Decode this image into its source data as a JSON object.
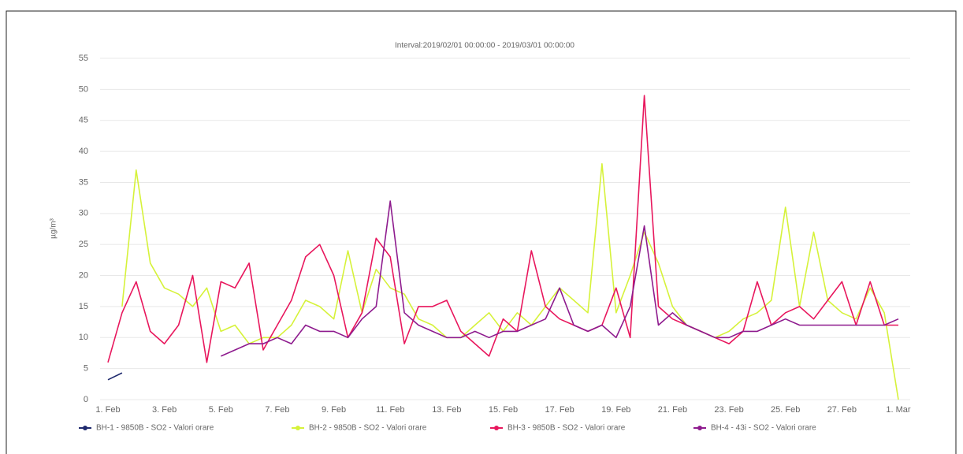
{
  "chart_data": {
    "type": "line",
    "title": "Interval:2019/02/01 00:00:00 - 2019/03/01 00:00:00",
    "y_label": "µg/m³",
    "categories": [
      "1. Feb",
      null,
      null,
      null,
      "3. Feb",
      null,
      null,
      null,
      "5. Feb",
      null,
      null,
      null,
      "7. Feb",
      null,
      null,
      null,
      "9. Feb",
      null,
      null,
      null,
      "11. Feb",
      null,
      null,
      null,
      "13. Feb",
      null,
      null,
      null,
      "15. Feb",
      null,
      null,
      null,
      "17. Feb",
      null,
      null,
      null,
      "19. Feb",
      null,
      null,
      null,
      "21. Feb",
      null,
      null,
      null,
      "23. Feb",
      null,
      null,
      null,
      "25. Feb",
      null,
      null,
      null,
      "27. Feb",
      null,
      null,
      null,
      "1. Mar"
    ],
    "series": [
      {
        "name": "BH-1 - 9850B - SO2 - Valori orare",
        "color": "#1f2a6e",
        "values": [
          3.2,
          4.3,
          null,
          null,
          null,
          null,
          null,
          null,
          null,
          null,
          null,
          null,
          null,
          null,
          null,
          null,
          null,
          null,
          null,
          null,
          null,
          null,
          null,
          null,
          null,
          null,
          null,
          null,
          null,
          null,
          null,
          null,
          null,
          null,
          null,
          null,
          null,
          null,
          null,
          null,
          null,
          null,
          null,
          null,
          null,
          null,
          null,
          null,
          null,
          null,
          null,
          null,
          null,
          null,
          null,
          null,
          null
        ]
      },
      {
        "name": "BH-2 - 9850B - SO2 - Valori orare",
        "color": "#d6f23a",
        "values": [
          null,
          15,
          37,
          22,
          18,
          17,
          15,
          18,
          11,
          12,
          9,
          10,
          10,
          12,
          16,
          15,
          13,
          24,
          14,
          21,
          18,
          17,
          13,
          12,
          10,
          10,
          12,
          14,
          11,
          14,
          12,
          15,
          18,
          16,
          14,
          38,
          14,
          20,
          27,
          22,
          15,
          12,
          11,
          10,
          11,
          13,
          14,
          16,
          31,
          15,
          27,
          16,
          14,
          13,
          18,
          14,
          0
        ]
      },
      {
        "name": "BH-3 - 9850B - SO2 - Valori orare",
        "color": "#e8175d",
        "values": [
          6,
          14,
          19,
          11,
          9,
          12,
          20,
          6,
          19,
          18,
          22,
          8,
          12,
          16,
          23,
          25,
          20,
          10,
          14,
          26,
          23,
          9,
          15,
          15,
          16,
          11,
          9,
          7,
          13,
          11,
          24,
          15,
          13,
          12,
          11,
          12,
          18,
          10,
          49,
          15,
          13,
          12,
          11,
          10,
          9,
          11,
          19,
          12,
          14,
          15,
          13,
          16,
          19,
          12,
          19,
          12,
          12
        ]
      },
      {
        "name": "BH-4 - 43i - SO2 - Valori orare",
        "color": "#8e1b8e",
        "values": [
          null,
          null,
          null,
          null,
          null,
          null,
          null,
          null,
          7,
          8,
          9,
          9,
          10,
          9,
          12,
          11,
          11,
          10,
          13,
          15,
          32,
          14,
          12,
          11,
          10,
          10,
          11,
          10,
          11,
          11,
          12,
          13,
          18,
          12,
          11,
          12,
          10,
          15,
          28,
          12,
          14,
          12,
          11,
          10,
          10,
          11,
          11,
          12,
          13,
          12,
          12,
          12,
          12,
          12,
          12,
          12,
          13
        ]
      }
    ],
    "ylim": [
      0,
      55
    ],
    "yticks": [
      0,
      5,
      10,
      15,
      20,
      25,
      30,
      35,
      40,
      45,
      50,
      55
    ],
    "grid": true
  }
}
